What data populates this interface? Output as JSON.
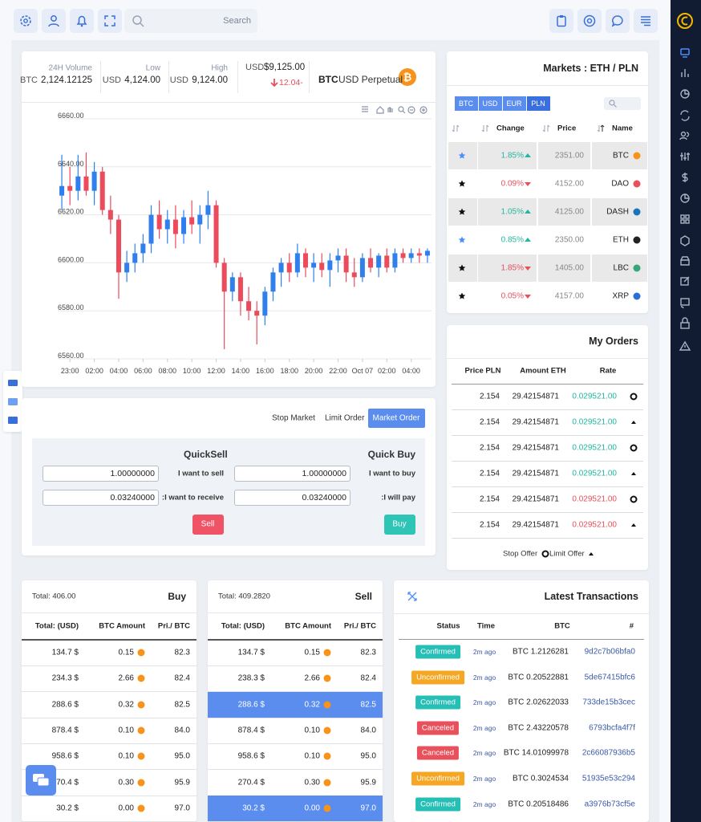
{
  "topbar": {
    "search": "Search"
  },
  "stats": {
    "volume": {
      "label": "24H Volume",
      "currency": "BTC",
      "value": "2,124.12125"
    },
    "low": {
      "label": "Low",
      "currency": "USD",
      "value": "4,124.00"
    },
    "high": {
      "label": "High",
      "currency": "USD",
      "value": "9,124.00"
    },
    "price": {
      "currency": "USD",
      "value": "$9,125.00",
      "change": "12.04-"
    },
    "pair": {
      "base": "BTC",
      "quote": "USD Perpetual"
    }
  },
  "chart_data": {
    "type": "candlestick",
    "up_color": "#2f80ed",
    "down_color": "#eb4b5b",
    "grid": true,
    "ylim": [
      6560,
      6660
    ],
    "yticks": [
      {
        "value": 6560,
        "label": "6560.00"
      },
      {
        "value": 6580,
        "label": "6580.00"
      },
      {
        "value": 6600,
        "label": "6600.00"
      },
      {
        "value": 6620,
        "label": "6620.00"
      },
      {
        "value": 6640,
        "label": "6640.00"
      },
      {
        "value": 6660,
        "label": "6660.00"
      }
    ],
    "xlim": [
      -0.5,
      45.5
    ],
    "xticks": [
      {
        "value": 1,
        "label": "23:00"
      },
      {
        "value": 4,
        "label": "02:00"
      },
      {
        "value": 7,
        "label": "04:00"
      },
      {
        "value": 10,
        "label": "06:00"
      },
      {
        "value": 13,
        "label": "08:00"
      },
      {
        "value": 16,
        "label": "10:00"
      },
      {
        "value": 19,
        "label": "12:00"
      },
      {
        "value": 22,
        "label": "14:00"
      },
      {
        "value": 25,
        "label": "16:00"
      },
      {
        "value": 28,
        "label": "18:00"
      },
      {
        "value": 31,
        "label": "20:00"
      },
      {
        "value": 34,
        "label": "22:00"
      },
      {
        "value": 37,
        "label": "Oct 07"
      },
      {
        "value": 40,
        "label": "02:00"
      },
      {
        "value": 43,
        "label": "04:00"
      }
    ],
    "x": [
      0,
      1,
      2,
      3,
      4,
      5,
      6,
      7,
      8,
      9,
      10,
      11,
      12,
      13,
      14,
      15,
      16,
      17,
      18,
      19,
      20,
      21,
      22,
      23,
      24,
      25,
      26,
      27,
      28,
      29,
      30,
      31,
      32,
      33,
      34,
      35,
      36,
      37,
      38,
      39,
      40,
      41,
      42,
      43,
      44,
      45
    ],
    "open": [
      6628,
      6632,
      6630,
      6636,
      6630,
      6638,
      6622,
      6618,
      6596,
      6600,
      6604,
      6608,
      6620,
      6614,
      6618,
      6612,
      6619,
      6616,
      6620,
      6624,
      6600,
      6588,
      6594,
      6584,
      6580,
      6578,
      6588,
      6596,
      6600,
      6596,
      6604,
      6598,
      6600,
      6597,
      6601,
      6603,
      6596,
      6594,
      6602,
      6598,
      6603,
      6598,
      6604,
      6602,
      6604,
      6603
    ],
    "high": [
      6645,
      6640,
      6645,
      6646,
      6642,
      6640,
      6628,
      6620,
      6605,
      6608,
      6612,
      6624,
      6626,
      6622,
      6624,
      6622,
      6626,
      6624,
      6630,
      6626,
      6602,
      6596,
      6596,
      6590,
      6584,
      6590,
      6598,
      6602,
      6604,
      6608,
      6606,
      6604,
      6604,
      6604,
      6606,
      6606,
      6602,
      6604,
      6606,
      6604,
      6606,
      6606,
      6606,
      6606,
      6606,
      6606
    ],
    "low": [
      6622,
      6624,
      6626,
      6628,
      6624,
      6620,
      6612,
      6585,
      6592,
      6596,
      6600,
      6604,
      6610,
      6608,
      6606,
      6608,
      6612,
      6608,
      6614,
      6598,
      6564,
      6584,
      6578,
      6576,
      6566,
      6574,
      6584,
      6590,
      6592,
      6594,
      6594,
      6592,
      6594,
      6590,
      6596,
      6592,
      6590,
      6592,
      6596,
      6594,
      6596,
      6596,
      6600,
      6600,
      6600,
      6600
    ],
    "close": [
      6632,
      6630,
      6636,
      6630,
      6638,
      6622,
      6618,
      6596,
      6600,
      6604,
      6608,
      6620,
      6614,
      6618,
      6612,
      6619,
      6616,
      6620,
      6624,
      6600,
      6588,
      6594,
      6584,
      6580,
      6578,
      6588,
      6596,
      6600,
      6596,
      6604,
      6598,
      6600,
      6597,
      6601,
      6603,
      6596,
      6594,
      6602,
      6598,
      6603,
      6598,
      6604,
      6602,
      6604,
      6603,
      6605
    ]
  },
  "markets": {
    "title": "Markets : ETH / PLN",
    "tabs": [
      "BTC",
      "USD",
      "EUR",
      "PLN"
    ],
    "active_tab": 3,
    "columns": [
      "Change",
      "Price",
      "Name"
    ],
    "up_color": "#26b5a0",
    "down_color": "#e8505b",
    "rows": [
      {
        "change": "1.85%",
        "direction": "up",
        "price": "2351.00",
        "name": "BTC",
        "starred": true,
        "icon_color": "#f7931a"
      },
      {
        "change": "0.09%",
        "direction": "down",
        "price": "4152.00",
        "name": "DAO",
        "starred": false,
        "icon_color": "#e8505b"
      },
      {
        "change": "1.05%",
        "direction": "up",
        "price": "4125.00",
        "name": "DASH",
        "starred": false,
        "icon_color": "#1c75bc"
      },
      {
        "change": "0.85%",
        "direction": "up",
        "price": "2350.00",
        "name": "ETH",
        "starred": true,
        "icon_color": "#222222"
      },
      {
        "change": "1.85%",
        "direction": "down",
        "price": "1405.00",
        "name": "LBC",
        "starred": false,
        "icon_color": "#3aa57a"
      },
      {
        "change": "0.05%",
        "direction": "down",
        "price": "4157.00",
        "name": "XRP",
        "starred": false,
        "icon_color": "#2a6fd6"
      }
    ]
  },
  "order_form": {
    "tabs": [
      "Stop Market",
      "Limit Order",
      "Market Order"
    ],
    "active_tab": 2,
    "sell": {
      "title": "QuickSell",
      "amount_label": "I want to sell",
      "amount": "1.00000000",
      "receive_label": ":I want to receive",
      "receive": "0.03240000",
      "button": "Sell"
    },
    "buy": {
      "title": "Quick Buy",
      "amount_label": "I want to buy",
      "amount": "1.00000000",
      "pay_label": ":I will pay",
      "pay": "0.03240000",
      "button": "Buy"
    }
  },
  "my_orders": {
    "title": "My Orders",
    "columns": [
      "Price PLN",
      "Amount ETH",
      "Rate"
    ],
    "up_color": "#26b5a0",
    "down_color": "#e8505b",
    "rows": [
      {
        "price": "2.154",
        "amount": "29.42154871",
        "rate": "0.029521.00",
        "direction": "up",
        "icon": "circle"
      },
      {
        "price": "2.154",
        "amount": "29.42154871",
        "rate": "0.029521.00",
        "direction": "up",
        "icon": "triangle"
      },
      {
        "price": "2.154",
        "amount": "29.42154871",
        "rate": "0.029521.00",
        "direction": "up",
        "icon": "circle"
      },
      {
        "price": "2.154",
        "amount": "29.42154871",
        "rate": "0.029521.00",
        "direction": "up",
        "icon": "triangle"
      },
      {
        "price": "2.154",
        "amount": "29.42154871",
        "rate": "0.029521.00",
        "direction": "down",
        "icon": "circle"
      },
      {
        "price": "2.154",
        "amount": "29.42154871",
        "rate": "0.029521.00",
        "direction": "down",
        "icon": "triangle"
      }
    ],
    "footer": [
      "Stop Offer",
      "Limit Offer"
    ]
  },
  "buy_book": {
    "total": "Total: 406.00",
    "title": "Buy",
    "columns": [
      "Total: (USD)",
      "BTC Amount",
      "Pri./ BTC"
    ],
    "rows": [
      {
        "total": "134.7 $",
        "amount": "0.15",
        "price": "82.3",
        "highlight": false
      },
      {
        "total": "234.3 $",
        "amount": "2.66",
        "price": "82.4",
        "highlight": false
      },
      {
        "total": "288.6 $",
        "amount": "0.32",
        "price": "82.5",
        "highlight": false
      },
      {
        "total": "878.4 $",
        "amount": "0.10",
        "price": "84.0",
        "highlight": false
      },
      {
        "total": "958.6 $",
        "amount": "0.10",
        "price": "95.0",
        "highlight": false
      },
      {
        "total": "270.4 $",
        "amount": "0.30",
        "price": "95.9",
        "highlight": false
      },
      {
        "total": "30.2 $",
        "amount": "0.00",
        "price": "97.0",
        "highlight": false
      }
    ]
  },
  "sell_book": {
    "total": "Total: 409.2820",
    "title": "Sell",
    "columns": [
      "Total: (USD)",
      "BTC Amount",
      "Pri./ BTC"
    ],
    "rows": [
      {
        "total": "134.7 $",
        "amount": "0.15",
        "price": "82.3",
        "highlight": false
      },
      {
        "total": "238.3 $",
        "amount": "2.66",
        "price": "82.4",
        "highlight": false
      },
      {
        "total": "288.6 $",
        "amount": "0.32",
        "price": "82.5",
        "highlight": true
      },
      {
        "total": "878.4 $",
        "amount": "0.10",
        "price": "84.0",
        "highlight": false
      },
      {
        "total": "958.6 $",
        "amount": "0.10",
        "price": "95.0",
        "highlight": false
      },
      {
        "total": "270.4 $",
        "amount": "0.30",
        "price": "95.9",
        "highlight": false
      },
      {
        "total": "30.2 $",
        "amount": "0.00",
        "price": "97.0",
        "highlight": true
      }
    ]
  },
  "transactions": {
    "title": "Latest Transactions",
    "columns": [
      "Status",
      "Time",
      "BTC",
      "#"
    ],
    "rows": [
      {
        "status": "Confirmed",
        "color": "#26bfb5",
        "time": "2m ago",
        "btc": "BTC 1.2126281",
        "hash": "9d2c7b06bfa0"
      },
      {
        "status": "Unconfirmed",
        "color": "#f5a623",
        "time": "2m ago",
        "btc": "BTC 0.20522881",
        "hash": "5de67415bfc6"
      },
      {
        "status": "Confirmed",
        "color": "#26bfb5",
        "time": "2m ago",
        "btc": "BTC 2.02622033",
        "hash": "733de15b3cec"
      },
      {
        "status": "Canceled",
        "color": "#e8505b",
        "time": "2m ago",
        "btc": "BTC 2.43220578",
        "hash": "6793bcfa4f7f"
      },
      {
        "status": "Canceled",
        "color": "#e8505b",
        "time": "2m ago",
        "btc": "BTC 14.01099978",
        "hash": "2c66087936b5"
      },
      {
        "status": "Unconfirmed",
        "color": "#f5a623",
        "time": "2m ago",
        "btc": "BTC 0.3024534",
        "hash": "51935e53c294"
      },
      {
        "status": "Confirmed",
        "color": "#26bfb5",
        "time": "2m ago",
        "btc": "BTC 0.20518486",
        "hash": "a3976b73cf5e"
      }
    ]
  }
}
